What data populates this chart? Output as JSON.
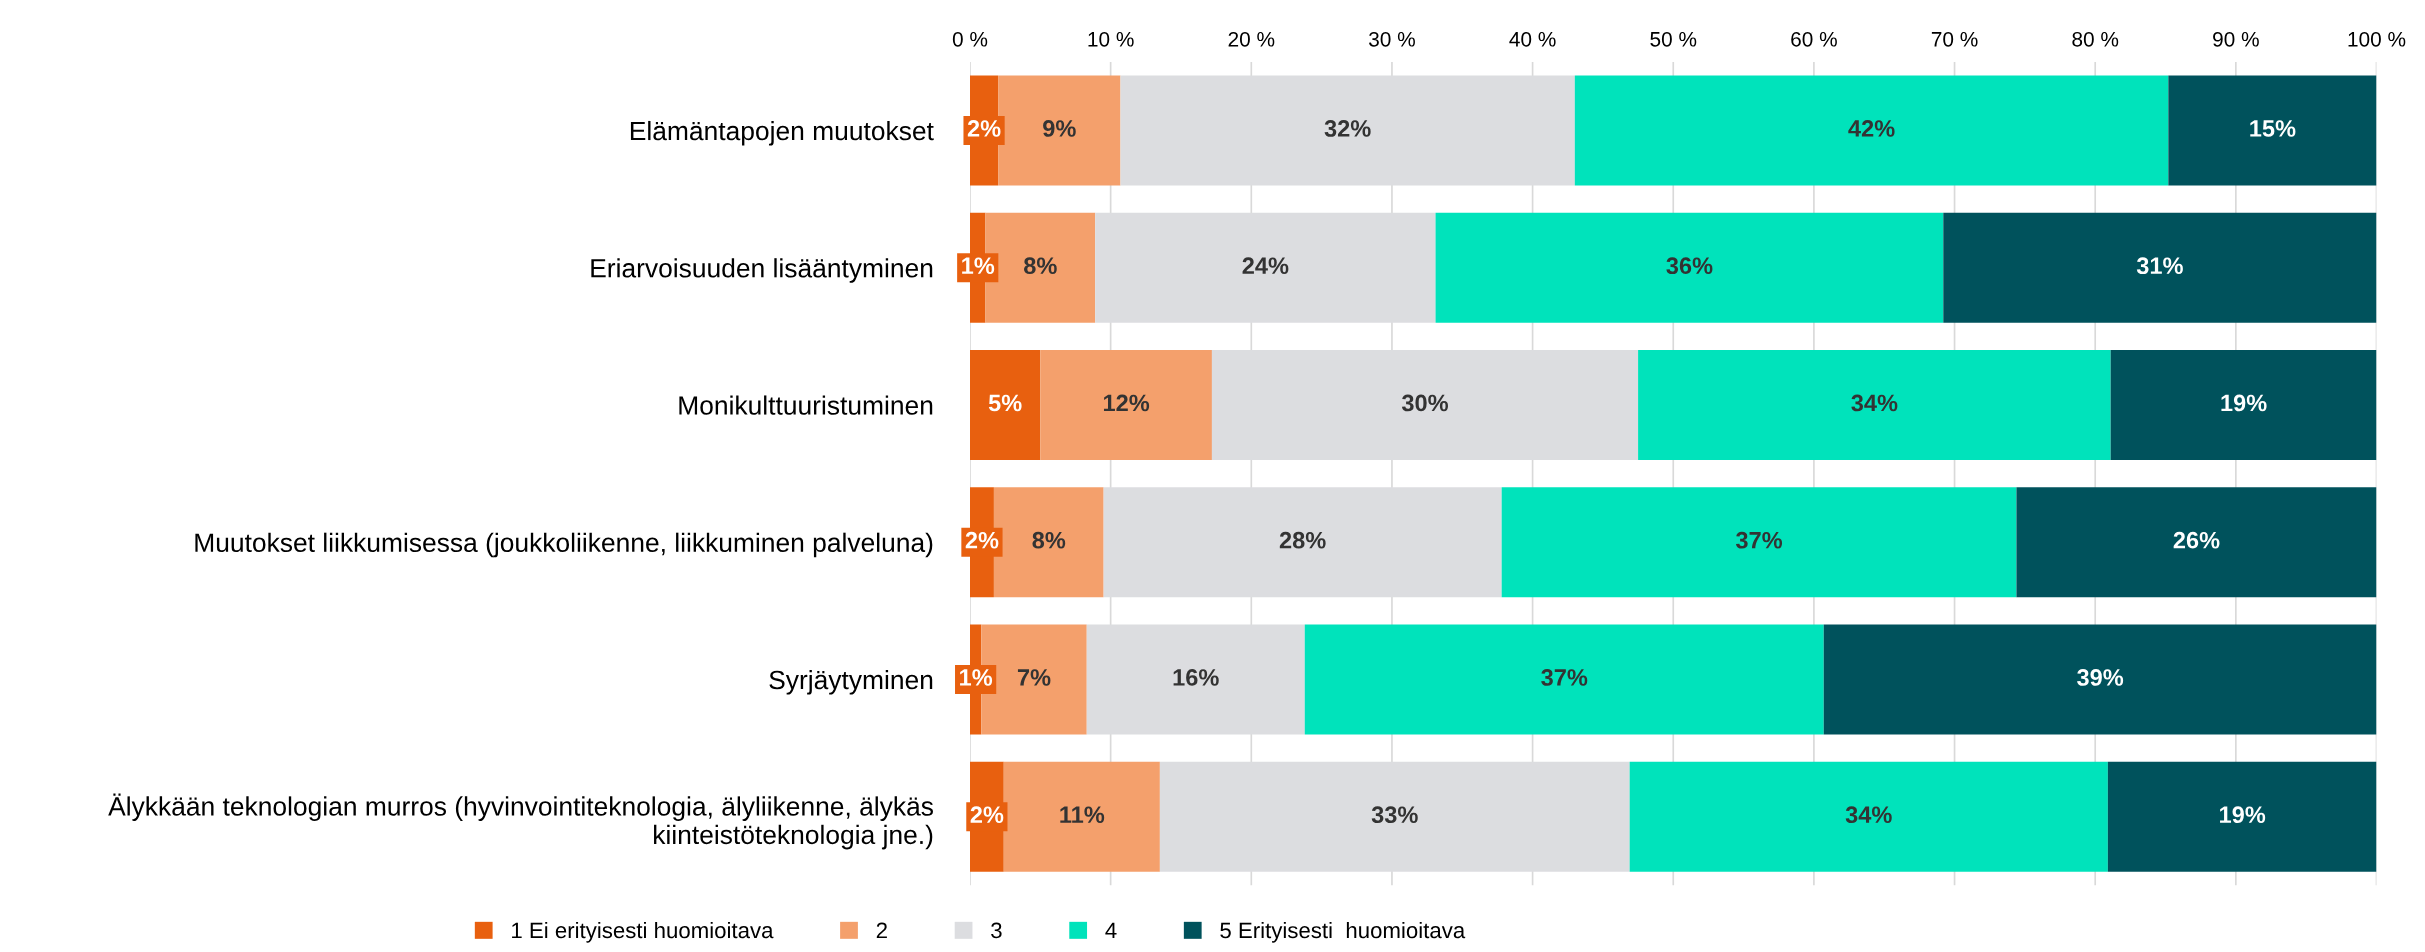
{
  "chart_data": {
    "type": "bar",
    "orientation": "horizontal",
    "stacked": true,
    "categories": [
      "Elämäntapojen muutokset",
      "Eriarvoisuuden lisääntyminen",
      "Monikulttuuristuminen",
      "Muutokset liikkumisessa (joukkoliikenne, liikkuminen palveluna)",
      "Syrjäytyminen",
      "Älykkään teknologian murros (hyvinvointiteknologia, älyliikenne, älykäs\nkiinteistöteknologia jne.)"
    ],
    "series": [
      {
        "name": "1 Ei erityisesti huomioitava",
        "color": "#e8600f",
        "values": [
          2.0,
          1.1,
          5.0,
          1.7,
          0.8,
          2.4
        ],
        "value_labels": [
          "2%",
          "1%",
          "5%",
          "2%",
          "1%",
          "2%"
        ]
      },
      {
        "name": "2",
        "color": "#f4a06c",
        "values": [
          8.7,
          7.8,
          12.2,
          7.8,
          7.5,
          11.1
        ],
        "value_labels": [
          "9%",
          "8%",
          "12%",
          "8%",
          "7%",
          "11%"
        ]
      },
      {
        "name": "3",
        "color": "#dcdde0",
        "values": [
          32.3,
          24.2,
          30.3,
          28.3,
          15.5,
          33.4
        ],
        "value_labels": [
          "32%",
          "24%",
          "30%",
          "28%",
          "16%",
          "33%"
        ]
      },
      {
        "name": "4",
        "color": "#00e3bb",
        "values": [
          42.2,
          36.1,
          33.6,
          36.6,
          36.9,
          34.0
        ],
        "value_labels": [
          "42%",
          "36%",
          "34%",
          "37%",
          "37%",
          "34%"
        ]
      },
      {
        "name": "5 Erityisesti  huomioitava",
        "color": "#00525c",
        "values": [
          14.8,
          30.8,
          18.9,
          25.6,
          39.3,
          19.1
        ],
        "value_labels": [
          "15%",
          "31%",
          "19%",
          "26%",
          "39%",
          "19%"
        ]
      }
    ],
    "xlim": [
      0,
      100
    ],
    "xticks": [
      {
        "value": 0,
        "label": "0 %"
      },
      {
        "value": 10,
        "label": "10 %"
      },
      {
        "value": 20,
        "label": "20 %"
      },
      {
        "value": 30,
        "label": "30 %"
      },
      {
        "value": 40,
        "label": "40 %"
      },
      {
        "value": 50,
        "label": "50 %"
      },
      {
        "value": 60,
        "label": "60 %"
      },
      {
        "value": 70,
        "label": "70 %"
      },
      {
        "value": 80,
        "label": "80 %"
      },
      {
        "value": 90,
        "label": "90 %"
      },
      {
        "value": 100,
        "label": "100 %"
      }
    ],
    "grid": "x",
    "legend": "bottom"
  }
}
